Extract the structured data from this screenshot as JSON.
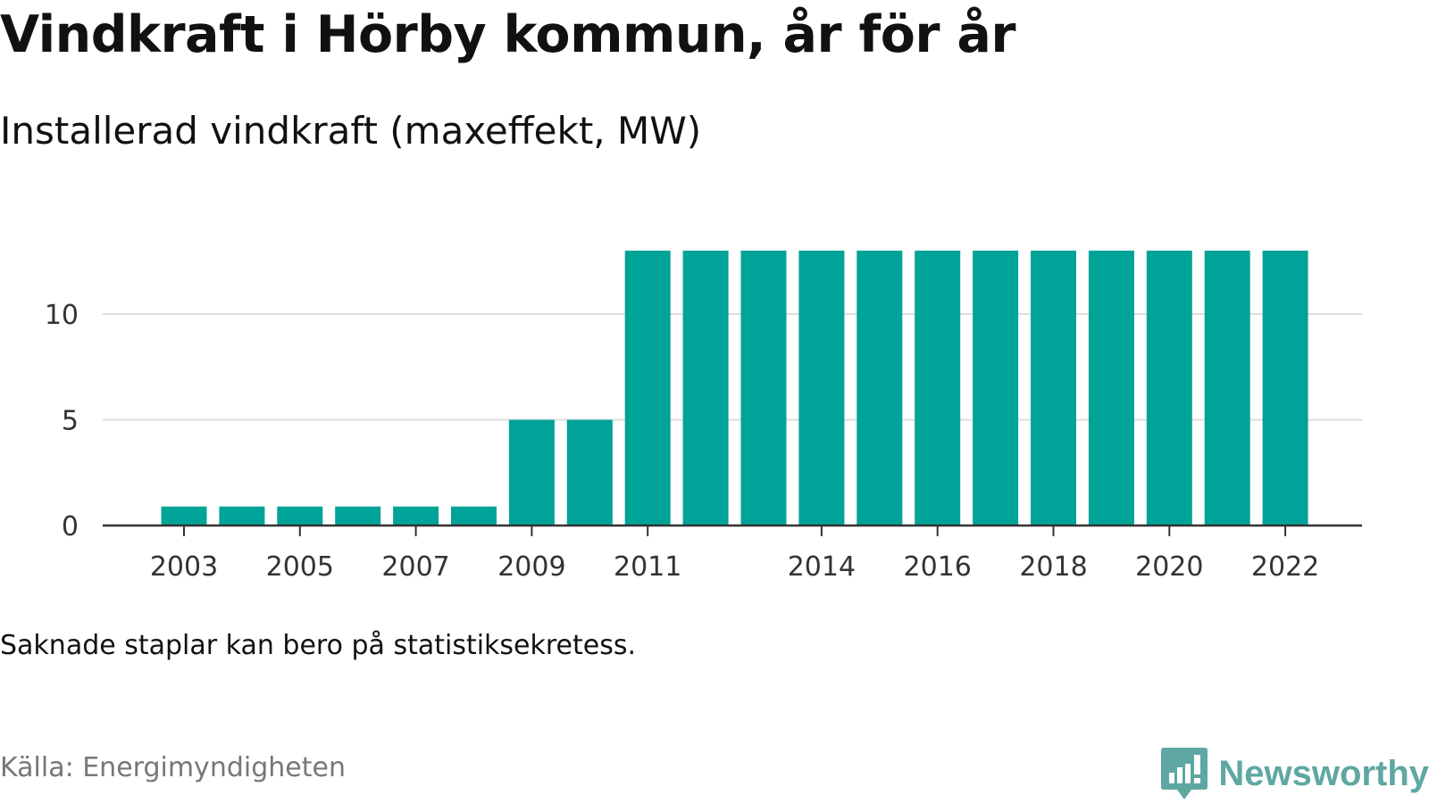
{
  "header": {
    "title": "Vindkraft i Hörby kommun, år för år",
    "subtitle": "Installerad vindkraft (maxeffekt, MW)"
  },
  "footer": {
    "note": "Saknade staplar kan bero på statistiksekretess.",
    "source": "Källa: Energimyndigheten",
    "brand": "Newsworthy"
  },
  "colors": {
    "bar": "#00a398",
    "grid": "#dddddd",
    "axis": "#333333",
    "brand": "#5fa7a2"
  },
  "chart_data": {
    "type": "bar",
    "title": "Vindkraft i Hörby kommun, år för år",
    "subtitle": "Installerad vindkraft (maxeffekt, MW)",
    "categories": [
      2003,
      2004,
      2005,
      2006,
      2007,
      2008,
      2009,
      2010,
      2011,
      2012,
      2013,
      2014,
      2015,
      2016,
      2017,
      2018,
      2019,
      2020,
      2021,
      2022
    ],
    "values": [
      0.9,
      0.9,
      0.9,
      0.9,
      0.9,
      0.9,
      5,
      5,
      13,
      13,
      13,
      13,
      13,
      13,
      13,
      13,
      13,
      13,
      13,
      13
    ],
    "x_tick_labels": [
      "2003",
      "2005",
      "2007",
      "2009",
      "2011",
      "2014",
      "2016",
      "2018",
      "2020",
      "2022"
    ],
    "y_ticks": [
      0,
      5,
      10
    ],
    "ylim": [
      0,
      15
    ],
    "xlabel": "",
    "ylabel": "",
    "grid": true,
    "legend": "none"
  }
}
